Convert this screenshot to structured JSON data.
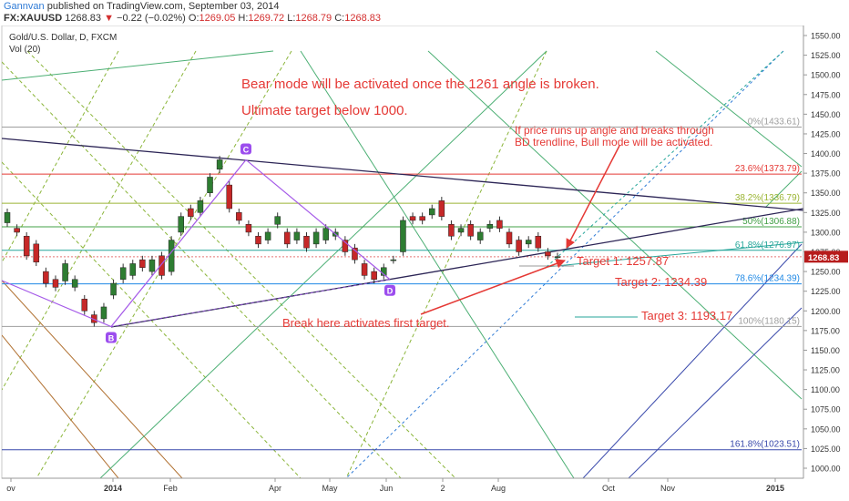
{
  "header": {
    "author": "Gannvan",
    "published_text": " published on TradingView.com, September 03, 2014",
    "symbol": "FX:XAUUSD",
    "last": "1268.83",
    "change": "−0.22 (−0.02%)",
    "o_label": "O:",
    "o_value": "1269.05",
    "h_label": "H:",
    "h_value": "1269.72",
    "l_label": "L:",
    "l_value": "1268.79",
    "c_label": "C:",
    "c_value": "1268.83"
  },
  "legend": {
    "title": "Gold/U.S. Dollar, D, FXCM",
    "vol": "Vol (20)"
  },
  "chart_data": {
    "type": "candlestick",
    "symbol": "Gold/U.S. Dollar, D, FXCM",
    "interval": "D",
    "y_range": [
      990,
      1560
    ],
    "y_ticks": [
      1000,
      1025,
      1050,
      1075,
      1100,
      1125,
      1150,
      1175,
      1200,
      1225,
      1250,
      1275,
      1300,
      1325,
      1350,
      1375,
      1400,
      1425,
      1450,
      1475,
      1500,
      1525,
      1550
    ],
    "x_ticks": [
      "ov",
      "2014",
      "Feb",
      "Apr",
      "May",
      "Jun",
      "2",
      "Aug",
      "Oct",
      "Nov",
      "2015"
    ],
    "last_price": "1268.83",
    "price_path": [
      [
        1312,
        1325
      ],
      [
        1305,
        1300
      ],
      [
        1295,
        1270
      ],
      [
        1285,
        1262
      ],
      [
        1250,
        1235
      ],
      [
        1240,
        1230
      ],
      [
        1238,
        1260
      ],
      [
        1230,
        1240
      ],
      [
        1215,
        1200
      ],
      [
        1195,
        1185
      ],
      [
        1190,
        1205
      ],
      [
        1220,
        1235
      ],
      [
        1240,
        1255
      ],
      [
        1245,
        1260
      ],
      [
        1265,
        1255
      ],
      [
        1250,
        1265
      ],
      [
        1270,
        1245
      ],
      [
        1250,
        1290
      ],
      [
        1300,
        1320
      ],
      [
        1330,
        1320
      ],
      [
        1325,
        1340
      ],
      [
        1350,
        1370
      ],
      [
        1380,
        1392
      ],
      [
        1360,
        1330
      ],
      [
        1325,
        1315
      ],
      [
        1310,
        1300
      ],
      [
        1295,
        1285
      ],
      [
        1290,
        1300
      ],
      [
        1310,
        1320
      ],
      [
        1300,
        1285
      ],
      [
        1290,
        1300
      ],
      [
        1295,
        1280
      ],
      [
        1285,
        1300
      ],
      [
        1290,
        1305
      ],
      [
        1295,
        1300
      ],
      [
        1290,
        1275
      ],
      [
        1280,
        1265
      ],
      [
        1260,
        1245
      ],
      [
        1250,
        1240
      ],
      [
        1245,
        1255
      ],
      [
        1265,
        1265
      ],
      [
        1275,
        1315
      ],
      [
        1320,
        1315
      ],
      [
        1320,
        1315
      ],
      [
        1322,
        1330
      ],
      [
        1340,
        1320
      ],
      [
        1310,
        1295
      ],
      [
        1300,
        1305
      ],
      [
        1310,
        1295
      ],
      [
        1290,
        1300
      ],
      [
        1305,
        1310
      ],
      [
        1315,
        1305
      ],
      [
        1300,
        1285
      ],
      [
        1290,
        1275
      ],
      [
        1285,
        1290
      ],
      [
        1295,
        1280
      ],
      [
        1275,
        1270
      ],
      [
        1268,
        1269
      ]
    ],
    "pivots": [
      {
        "label": "B",
        "price": 1180
      },
      {
        "label": "C",
        "price": 1392
      },
      {
        "label": "D",
        "price": 1240
      }
    ],
    "fib_levels": [
      {
        "label": "0%(1433.61)",
        "price": 1433.61,
        "color": "#9e9e9e"
      },
      {
        "label": "23.6%(1373.79)",
        "price": 1373.79,
        "color": "#e53935"
      },
      {
        "label": "38.2%(1336.79)",
        "price": 1336.79,
        "color": "#9bb534"
      },
      {
        "label": "50%(1306.88)",
        "price": 1306.88,
        "color": "#43a047"
      },
      {
        "label": "61.8%(1276.97)",
        "price": 1276.97,
        "color": "#26a69a"
      },
      {
        "label": "78.6%(1234.39)",
        "price": 1234.39,
        "color": "#1e88e5"
      },
      {
        "label": "100%(1180.15)",
        "price": 1180.15,
        "color": "#9e9e9e"
      },
      {
        "label": "161.8%(1023.51)",
        "price": 1023.51,
        "color": "#3949ab"
      }
    ],
    "annotations": {
      "bear_text": "Bear mode will be activated once the 1261 angle is broken.",
      "target_text": "Ultimate target below 1000.",
      "bull_text_1": "If price runs up angle and breaks through",
      "bull_text_2": "BD trendline, Bull mode will be activated.",
      "target1": "Target 1: 1257.87",
      "target2": "Target 2: 1234.39",
      "target3": "Target 3: 1193.17",
      "break_text": "Break here activates first target."
    },
    "colors": {
      "bull_candle": "#2e7d32",
      "bear_candle": "#c62828",
      "annotation": "#e53935",
      "trendline": "#2c2556",
      "abcd": "#a55ae8",
      "price_badge": "#b71c1c"
    }
  }
}
